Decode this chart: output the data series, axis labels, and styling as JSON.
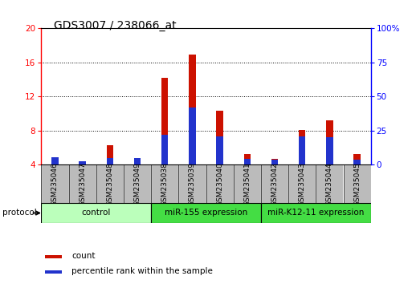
{
  "title": "GDS3007 / 238066_at",
  "samples": [
    "GSM235046",
    "GSM235047",
    "GSM235048",
    "GSM235049",
    "GSM235038",
    "GSM235039",
    "GSM235040",
    "GSM235041",
    "GSM235042",
    "GSM235043",
    "GSM235044",
    "GSM235045"
  ],
  "count_values": [
    4.65,
    4.35,
    6.3,
    4.3,
    14.2,
    16.9,
    10.3,
    5.25,
    4.7,
    8.1,
    9.2,
    5.3
  ],
  "percentile_values": [
    5.5,
    2.5,
    4.8,
    4.8,
    22.0,
    42.0,
    20.5,
    4.5,
    3.5,
    20.5,
    20.0,
    3.5
  ],
  "ylim_left": [
    4,
    20
  ],
  "ylim_right": [
    0,
    100
  ],
  "yticks_left": [
    4,
    8,
    12,
    16,
    20
  ],
  "yticks_right": [
    0,
    25,
    50,
    75,
    100
  ],
  "groups": [
    {
      "label": "control",
      "start": 0,
      "end": 4,
      "color": "#ccffcc"
    },
    {
      "label": "miR-155 expression",
      "start": 4,
      "end": 8,
      "color": "#44dd44"
    },
    {
      "label": "miR-K12-11 expression",
      "start": 8,
      "end": 12,
      "color": "#44dd44"
    }
  ],
  "protocol_label": "protocol",
  "bar_color_count": "#cc1100",
  "bar_color_percentile": "#2233cc",
  "bar_width": 0.25,
  "background_color": "#ffffff",
  "title_fontsize": 10,
  "bar_baseline": 4.0,
  "sample_box_color": "#bbbbbb",
  "group_border_color": "#333333"
}
